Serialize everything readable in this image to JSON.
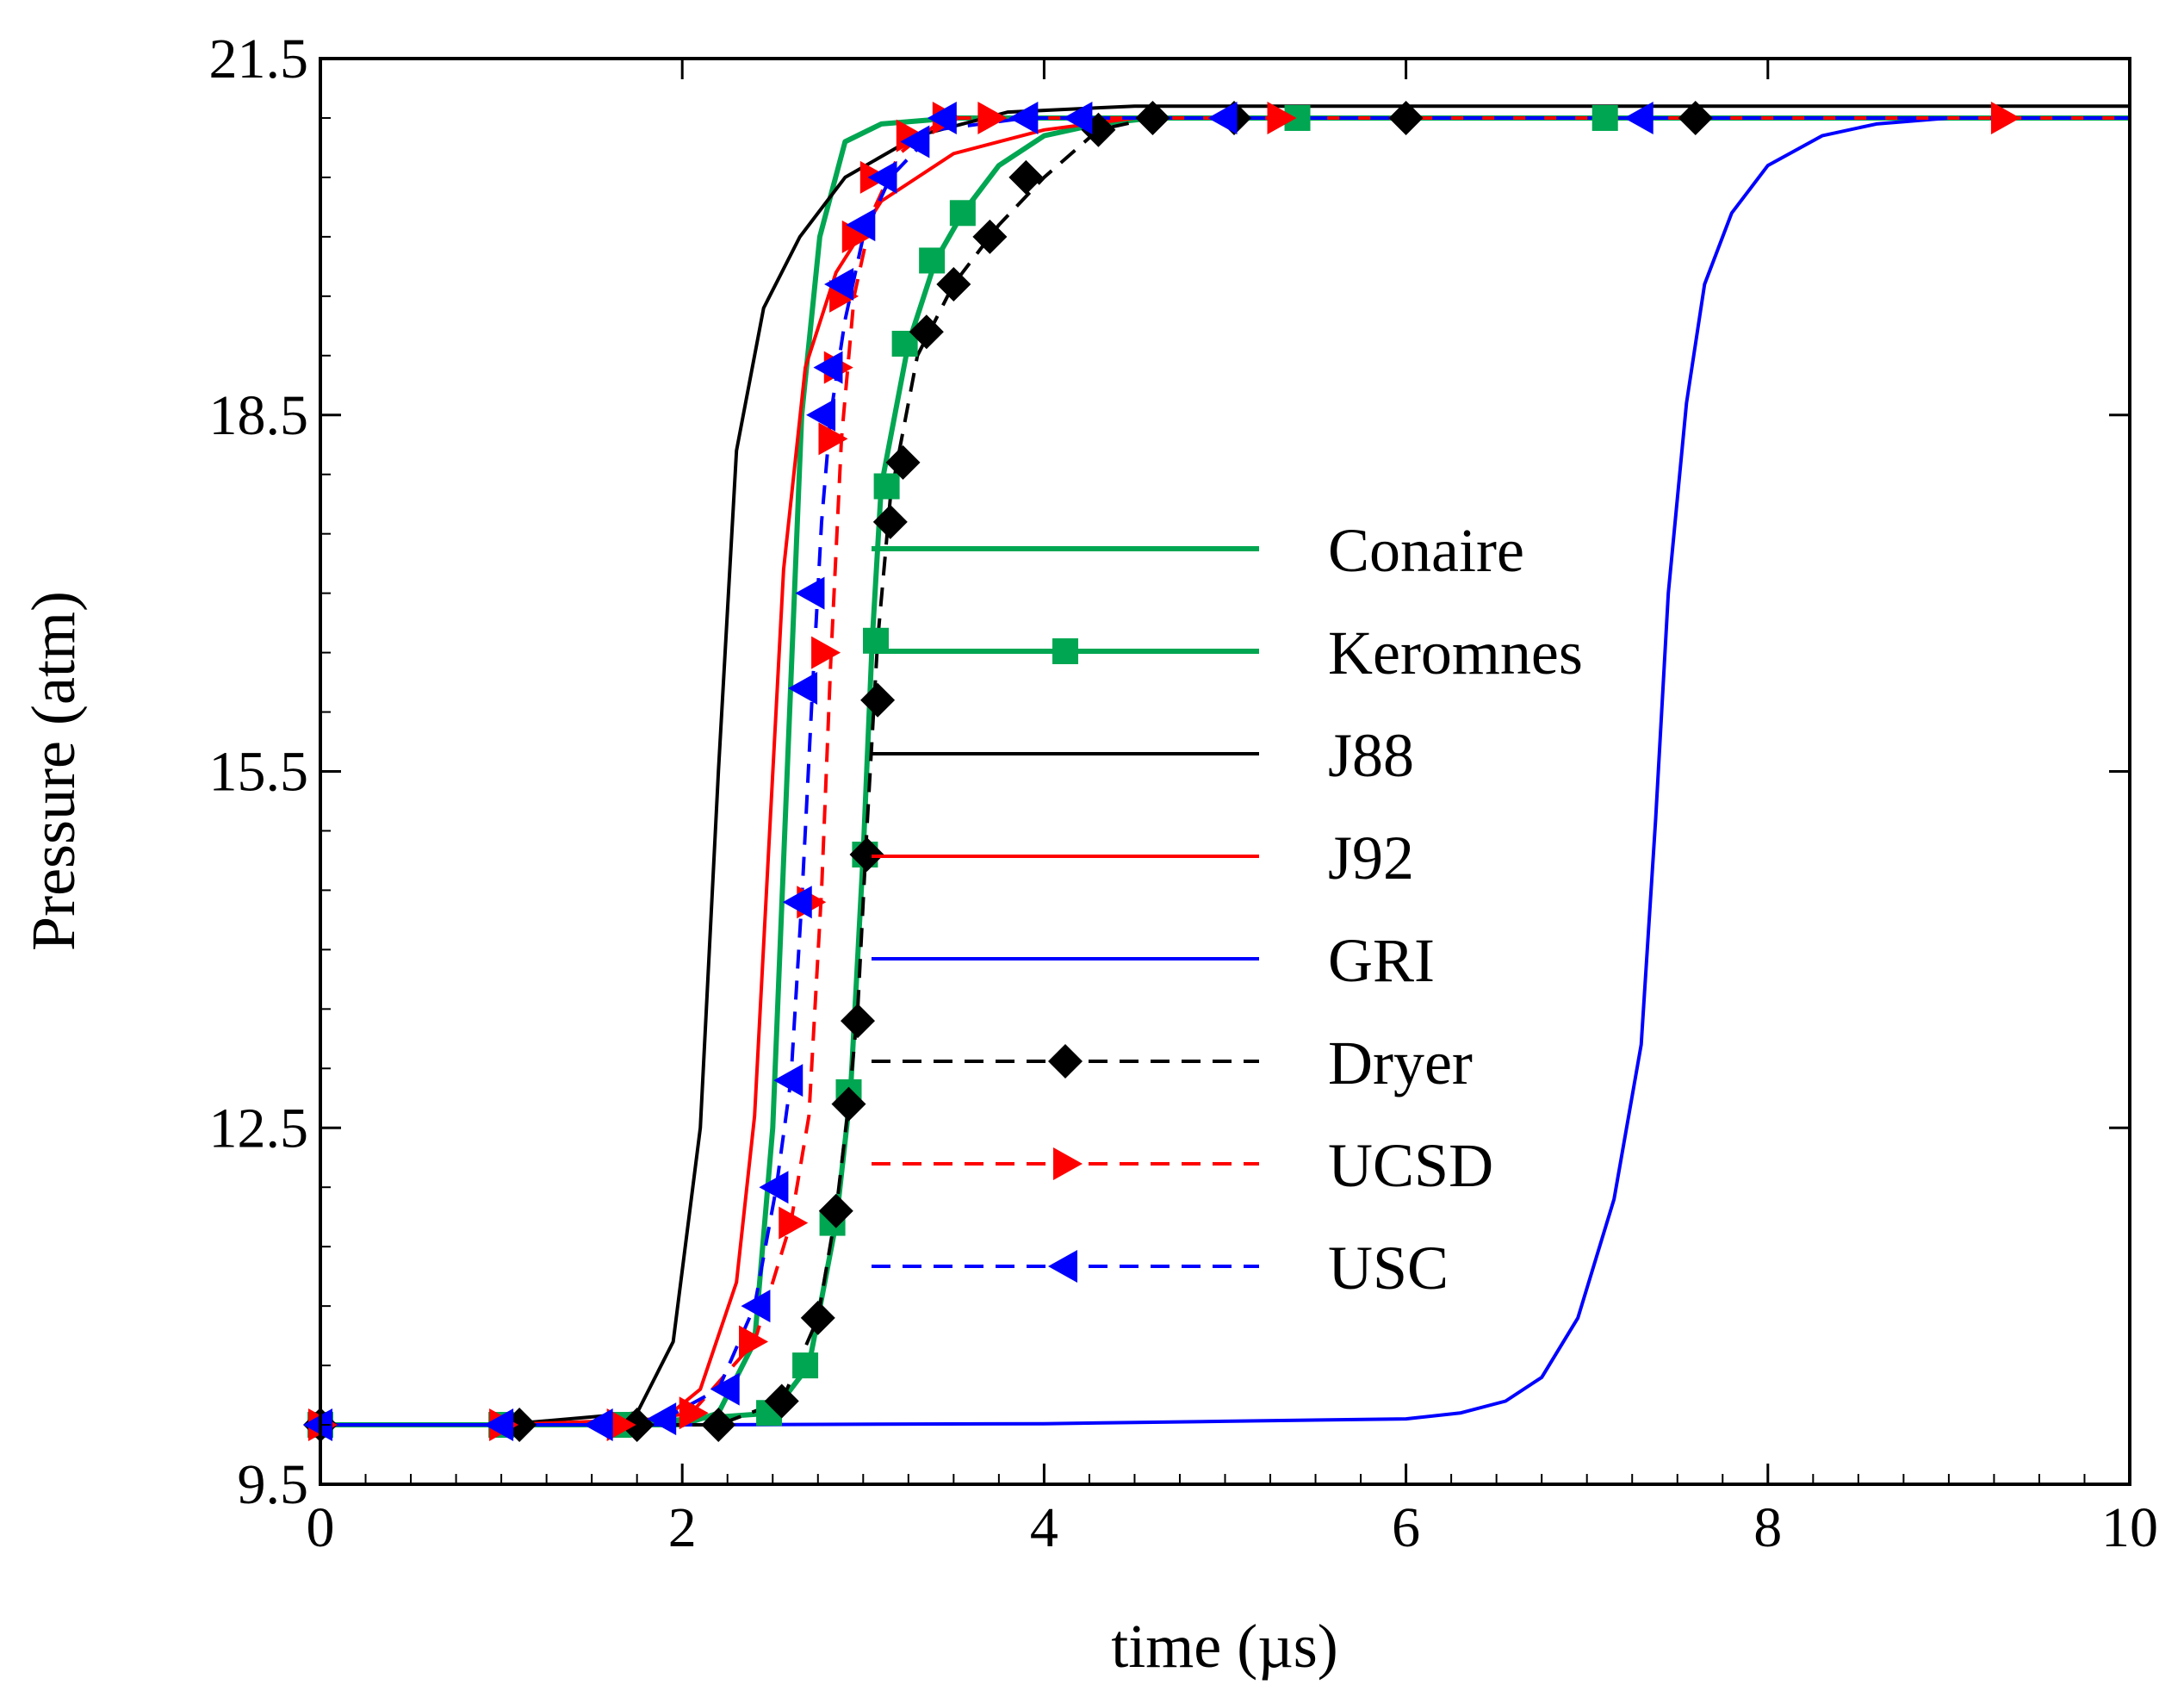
{
  "chart_data": {
    "type": "line",
    "title": "",
    "xlabel": "time (µs)",
    "ylabel": "Pressure (atm)",
    "xlim": [
      0,
      10
    ],
    "ylim": [
      9.5,
      21.5
    ],
    "xticks": [
      0,
      2,
      4,
      6,
      8,
      10
    ],
    "xtick_labels": [
      "0",
      "2",
      "4",
      "6",
      "8",
      "10"
    ],
    "yticks": [
      9.5,
      12.5,
      15.5,
      18.5,
      21.5
    ],
    "ytick_labels": [
      "9.5",
      "12.5",
      "15.5",
      "18.5",
      "21.5"
    ],
    "grid": false,
    "legend_position": "center-right",
    "series": [
      {
        "name": "Conaire",
        "color": "#00a651",
        "dash": "solid",
        "marker": "none",
        "x": [
          0,
          1.0,
          2.0,
          2.2,
          2.4,
          2.5,
          2.58,
          2.66,
          2.76,
          2.9,
          3.1,
          3.5,
          4.0,
          10
        ],
        "y": [
          10.0,
          10.0,
          10.0,
          10.1,
          10.7,
          12.5,
          15.5,
          18.5,
          20.0,
          20.8,
          20.95,
          21.0,
          21.0,
          21.0
        ]
      },
      {
        "name": "Keromnes",
        "color": "#00a651",
        "dash": "solid",
        "marker": "square",
        "x": [
          0,
          1.0,
          1.6,
          2.5,
          2.7,
          2.85,
          2.93,
          3.0,
          3.05,
          3.1,
          3.25,
          3.4,
          3.55,
          3.75,
          4.0,
          4.3,
          4.6,
          5.4,
          7.1,
          10
        ],
        "y": [
          10.0,
          10.0,
          10.0,
          10.1,
          10.5,
          11.7,
          12.8,
          14.8,
          16.6,
          17.9,
          19.1,
          19.8,
          20.2,
          20.6,
          20.85,
          20.95,
          21.0,
          21.0,
          21.0,
          21.0
        ],
        "marker_x": [
          0,
          1.0,
          1.65,
          2.48,
          2.68,
          2.83,
          2.92,
          3.01,
          3.07,
          3.13,
          3.23,
          3.38,
          3.55,
          5.4,
          7.1
        ],
        "marker_y": [
          10.0,
          10.0,
          10.0,
          10.1,
          10.5,
          11.7,
          12.8,
          14.8,
          16.6,
          17.9,
          19.1,
          19.8,
          20.2,
          21.0,
          21.0
        ]
      },
      {
        "name": "J88",
        "color": "#000000",
        "dash": "solid",
        "marker": "none",
        "x": [
          0,
          1.0,
          1.75,
          1.95,
          2.1,
          2.2,
          2.3,
          2.45,
          2.65,
          2.9,
          3.3,
          3.8,
          4.5,
          10
        ],
        "y": [
          10.0,
          10.0,
          10.1,
          10.7,
          12.5,
          15.5,
          18.2,
          19.4,
          20.0,
          20.5,
          20.85,
          21.05,
          21.1,
          21.1
        ]
      },
      {
        "name": "J92",
        "color": "#ff0000",
        "dash": "solid",
        "marker": "none",
        "x": [
          0,
          1.0,
          1.9,
          2.1,
          2.3,
          2.4,
          2.48,
          2.56,
          2.68,
          2.85,
          3.1,
          3.5,
          4.0,
          4.5,
          10
        ],
        "y": [
          10.0,
          10.0,
          10.05,
          10.3,
          11.2,
          12.6,
          14.9,
          17.2,
          18.9,
          19.7,
          20.3,
          20.7,
          20.9,
          21.0,
          21.0
        ]
      },
      {
        "name": "GRI",
        "color": "#0000ff",
        "dash": "solid",
        "marker": "none",
        "x": [
          0,
          2.0,
          4.0,
          5.0,
          6.0,
          6.3,
          6.55,
          6.75,
          6.95,
          7.15,
          7.3,
          7.38,
          7.45,
          7.55,
          7.65,
          7.8,
          8.0,
          8.3,
          8.6,
          9.0,
          10
        ],
        "y": [
          10.0,
          10.0,
          10.01,
          10.03,
          10.05,
          10.1,
          10.2,
          10.4,
          10.9,
          11.9,
          13.2,
          15.1,
          17.0,
          18.6,
          19.6,
          20.2,
          20.6,
          20.85,
          20.95,
          21.0,
          21.0
        ]
      },
      {
        "name": "Dryer",
        "color": "#000000",
        "dash": "dashed",
        "marker": "diamond",
        "x": [
          0,
          1.1,
          1.75,
          2.2,
          2.55,
          2.75,
          2.85,
          2.92,
          2.97,
          3.02,
          3.08,
          3.15,
          3.3,
          3.5,
          3.75,
          4.0,
          4.3,
          4.6,
          5.05,
          6.0,
          7.6,
          10
        ],
        "y": [
          10.0,
          10.0,
          10.0,
          10.0,
          10.2,
          10.9,
          11.8,
          12.7,
          13.5,
          15.0,
          16.6,
          17.8,
          19.0,
          19.6,
          20.1,
          20.5,
          20.9,
          21.0,
          21.0,
          21.0,
          21.0,
          21.0
        ],
        "marker_x": [
          0,
          1.1,
          1.75,
          2.2,
          2.55,
          2.75,
          2.85,
          2.92,
          2.97,
          3.02,
          3.08,
          3.15,
          3.22,
          3.35,
          3.5,
          3.7,
          3.9,
          4.3,
          4.6,
          5.05,
          6.0,
          7.6
        ],
        "marker_y": [
          10.0,
          10.0,
          10.0,
          10.0,
          10.2,
          10.9,
          11.8,
          12.7,
          13.4,
          14.8,
          16.1,
          17.6,
          18.1,
          19.2,
          19.6,
          20.0,
          20.5,
          20.9,
          21.0,
          21.0,
          21.0,
          21.0
        ]
      },
      {
        "name": "UCSD",
        "color": "#ff0000",
        "dash": "dashed",
        "marker": "triangle-right",
        "x": [
          0,
          1.0,
          1.6,
          2.05,
          2.4,
          2.6,
          2.7,
          2.77,
          2.82,
          2.88,
          2.95,
          3.05,
          3.2,
          3.45,
          3.7,
          4.0,
          5.3,
          9.3,
          10
        ],
        "y": [
          10.0,
          10.0,
          10.0,
          10.1,
          10.7,
          11.7,
          12.6,
          14.5,
          16.4,
          18.3,
          19.5,
          20.2,
          20.7,
          21.0,
          21.0,
          21.0,
          21.0,
          21.0,
          21.0
        ],
        "marker_x": [
          0,
          1.0,
          1.65,
          2.05,
          2.38,
          2.6,
          2.7,
          2.78,
          2.82,
          2.85,
          2.88,
          2.95,
          3.05,
          3.25,
          3.45,
          3.7,
          5.3,
          9.3
        ],
        "marker_y": [
          10.0,
          10.0,
          10.0,
          10.1,
          10.7,
          11.7,
          14.4,
          16.5,
          18.3,
          18.9,
          19.5,
          20.0,
          20.5,
          20.85,
          21.0,
          21.0,
          21.0,
          21.0
        ]
      },
      {
        "name": "USC",
        "color": "#0000ff",
        "dash": "dashed",
        "marker": "triangle-left",
        "x": [
          0,
          1.0,
          1.55,
          1.9,
          2.2,
          2.4,
          2.52,
          2.6,
          2.66,
          2.72,
          2.77,
          2.82,
          2.9,
          3.0,
          3.15,
          3.4,
          3.9,
          4.2,
          5.0,
          7.3,
          10
        ],
        "y": [
          10.0,
          10.0,
          10.0,
          10.05,
          10.3,
          11.0,
          12.0,
          12.9,
          14.4,
          16.2,
          17.6,
          18.5,
          19.3,
          20.0,
          20.5,
          20.9,
          21.0,
          21.0,
          21.0,
          21.0,
          21.0
        ],
        "marker_x": [
          0,
          1.0,
          1.55,
          1.9,
          2.25,
          2.42,
          2.52,
          2.6,
          2.65,
          2.68,
          2.72,
          2.78,
          2.82,
          2.88,
          3.0,
          3.12,
          3.3,
          3.45,
          3.9,
          4.2,
          5.0,
          7.3
        ],
        "marker_y": [
          10.0,
          10.0,
          10.0,
          10.05,
          10.3,
          11.0,
          12.0,
          12.9,
          14.4,
          16.2,
          17.0,
          18.5,
          18.9,
          19.6,
          20.1,
          20.5,
          20.8,
          21.0,
          21.0,
          21.0,
          21.0,
          21.0
        ]
      }
    ]
  }
}
